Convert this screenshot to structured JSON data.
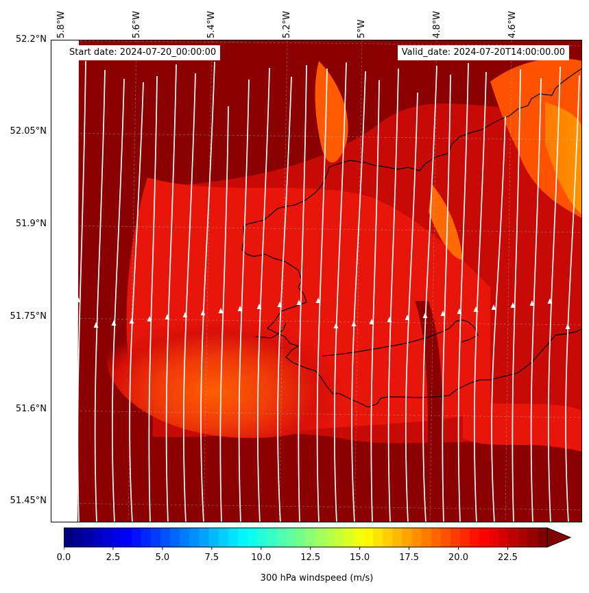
{
  "map": {
    "start_date": "Start date: 2024-07-20_00:00:00",
    "valid_date": "Valid_date: 2024-07-20T14:00:00.00",
    "lat_labels": [
      "52.2°N",
      "52.05°N",
      "51.9°N",
      "51.75°N",
      "51.6°N",
      "51.45°N"
    ],
    "lon_labels": [
      "5.8°W",
      "5.6°W",
      "5.4°W",
      "5.2°W",
      "5°W",
      "4.8°W",
      "4.6°W"
    ],
    "lat_range": [
      51.42,
      52.2
    ],
    "lon_range": [
      -5.83,
      -4.45
    ],
    "background_colors": {
      "low": "#8b0000",
      "mid": "#e8150a",
      "high": "#ff5a00",
      "peak": "#ff8c00"
    },
    "coastline_color": "#000000",
    "streamline_color": "#ffffff"
  },
  "colorbar": {
    "title": "300 hPa windspeed (m/s)",
    "ticks": [
      "0.0",
      "2.5",
      "5.0",
      "7.5",
      "10.0",
      "12.5",
      "15.0",
      "17.5",
      "20.0",
      "22.5"
    ],
    "tick_values": [
      0,
      2.5,
      5,
      7.5,
      10,
      12.5,
      15,
      17.5,
      20,
      22.5
    ],
    "range": [
      0,
      24.5
    ],
    "extend": "max"
  }
}
